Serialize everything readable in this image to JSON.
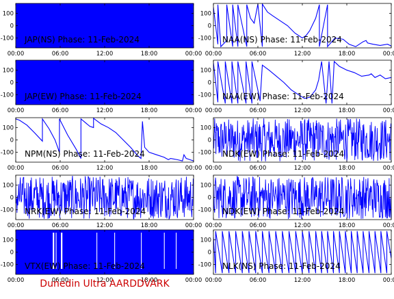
{
  "colors": {
    "trace": "#0000ff",
    "axis": "#000000",
    "footer": "#cc0000",
    "background": "#ffffff"
  },
  "footer": {
    "text": "Dunedin Ultra AARDDVARK"
  },
  "chart_data": [
    {
      "type": "line",
      "title": "JAP(NS) Phase: 11-Feb-2024",
      "xlim": [
        0,
        24
      ],
      "ylim": [
        -180,
        180
      ],
      "x_ticks": [
        "00:00",
        "06:00",
        "12:00",
        "18:00",
        "00:00"
      ],
      "y_ticks": [
        100,
        0,
        -100
      ],
      "fill": "solid",
      "series": [
        {
          "x": [],
          "y": []
        }
      ]
    },
    {
      "type": "line",
      "title": "NAA(NS) Phase: 11-Feb-2024",
      "xlim": [
        0,
        24
      ],
      "ylim": [
        -180,
        180
      ],
      "x_ticks": [
        "00:00",
        "06:00",
        "12:00",
        "18:00",
        "00:00"
      ],
      "y_ticks": [
        100,
        0,
        -100
      ],
      "series": [
        {
          "x": [
            0.0,
            0.6,
            0.6,
            1.0,
            1.8,
            1.8,
            2.6,
            2.6,
            3.3,
            3.3,
            4.5,
            4.5,
            5.0,
            5.5,
            6.0,
            6.6,
            6.6,
            7.3,
            8.0,
            9.0,
            10.0,
            11.0,
            12.0,
            12.5,
            13.0,
            13.8,
            14.3,
            14.3,
            15.4,
            15.4,
            16.4,
            17.5,
            18.3,
            19.2,
            20.2,
            20.6,
            20.8,
            21.5,
            22.5,
            23.5,
            24.0
          ],
          "y": [
            150,
            -150,
            170,
            -170,
            -120,
            170,
            -170,
            170,
            -170,
            170,
            -170,
            170,
            60,
            20,
            175,
            -170,
            175,
            110,
            80,
            40,
            0,
            -60,
            -100,
            -80,
            -40,
            60,
            170,
            -170,
            170,
            -170,
            -100,
            -110,
            -150,
            -170,
            -130,
            -120,
            -140,
            -150,
            -160,
            -150,
            -165
          ]
        }
      ]
    },
    {
      "type": "line",
      "title": "JAP(EW) Phase: 11-Feb-2024",
      "xlim": [
        0,
        24
      ],
      "ylim": [
        -180,
        180
      ],
      "x_ticks": [
        "00:00",
        "06:00",
        "12:00",
        "18:00",
        "00:00"
      ],
      "y_ticks": [
        100,
        0,
        -100
      ],
      "fill": "solid",
      "series": [
        {
          "x": [],
          "y": []
        }
      ]
    },
    {
      "type": "line",
      "title": "NAA(EW) Phase: 11-Feb-2024",
      "xlim": [
        0,
        24
      ],
      "ylim": [
        -180,
        180
      ],
      "x_ticks": [
        "00:00",
        "06:00",
        "12:00",
        "18:00",
        "00:00"
      ],
      "y_ticks": [
        100,
        0,
        -100
      ],
      "series": [
        {
          "x": [
            0.0,
            0.6,
            0.6,
            1.6,
            1.6,
            2.5,
            2.5,
            3.3,
            3.3,
            4.4,
            4.4,
            5.2,
            5.2,
            6.3,
            6.6,
            7.5,
            8.5,
            9.5,
            10.5,
            11.5,
            12.3,
            13.0,
            13.8,
            14.2,
            14.6,
            15.2,
            15.6,
            16.0,
            16.3,
            17.0,
            18.0,
            19.0,
            20.0,
            21.0,
            21.3,
            21.8,
            22.5,
            23.2,
            24.0
          ],
          "y": [
            160,
            -160,
            170,
            -170,
            170,
            -170,
            170,
            -170,
            170,
            -170,
            170,
            -170,
            170,
            -150,
            140,
            100,
            50,
            0,
            -60,
            -100,
            -130,
            -120,
            -60,
            20,
            170,
            -170,
            170,
            -170,
            170,
            130,
            100,
            80,
            50,
            60,
            70,
            40,
            60,
            30,
            40
          ]
        }
      ]
    },
    {
      "type": "line",
      "title": "NPM(NS) Phase: 11-Feb-2024",
      "xlim": [
        0,
        24
      ],
      "ylim": [
        -180,
        180
      ],
      "x_ticks": [
        "00:00",
        "06:00",
        "12:00",
        "18:00",
        "00:00"
      ],
      "y_ticks": [
        100,
        0,
        -100
      ],
      "series": [
        {
          "x": [
            0.0,
            0.5,
            1.5,
            2.5,
            3.6,
            3.6,
            4.5,
            5.3,
            5.9,
            5.9,
            7.0,
            8.2,
            8.8,
            8.8,
            10.0,
            10.5,
            10.5,
            11.5,
            12.5,
            13.5,
            14.5,
            15.5,
            16.5,
            16.9,
            17.1,
            17.4,
            18.0,
            19.0,
            20.0,
            20.6,
            20.9,
            21.8,
            22.5,
            22.7,
            23.0,
            23.5,
            24.0
          ],
          "y": [
            170,
            160,
            120,
            60,
            -10,
            170,
            90,
            0,
            -100,
            170,
            40,
            -80,
            -150,
            170,
            110,
            100,
            175,
            130,
            100,
            60,
            0,
            -60,
            -130,
            -150,
            150,
            -60,
            -100,
            -120,
            -140,
            -160,
            -150,
            -160,
            -170,
            -120,
            -150,
            -160,
            -170
          ]
        }
      ]
    },
    {
      "type": "line",
      "title": "NDK(EW) Phase: 11-Feb-2024",
      "xlim": [
        0,
        24
      ],
      "ylim": [
        -180,
        180
      ],
      "x_ticks": [
        "00:00",
        "06:00",
        "12:00",
        "18:00",
        "00:00"
      ],
      "y_ticks": [
        100,
        0,
        -100
      ],
      "noise": "dense",
      "series": [
        {
          "x": [],
          "y": []
        }
      ]
    },
    {
      "type": "line",
      "title": "NRK(EW) Phase: 11-Feb-2024",
      "xlim": [
        0,
        24
      ],
      "ylim": [
        -180,
        180
      ],
      "x_ticks": [
        "00:00",
        "06:00",
        "12:00",
        "18:00",
        "00:00"
      ],
      "y_ticks": [
        100,
        0,
        -100
      ],
      "noise": "dense",
      "series": [
        {
          "x": [],
          "y": []
        }
      ]
    },
    {
      "type": "line",
      "title": "NDK(EW) Phase: 11-Feb-2024",
      "xlim": [
        0,
        24
      ],
      "ylim": [
        -180,
        180
      ],
      "x_ticks": [
        "00:00",
        "06:00",
        "12:00",
        "18:00",
        "00:00"
      ],
      "y_ticks": [
        100,
        0,
        -100
      ],
      "noise": "dense",
      "series": [
        {
          "x": [],
          "y": []
        }
      ]
    },
    {
      "type": "line",
      "title": "VTX(EW) Phase: 11-Feb-2024",
      "xlim": [
        0,
        24
      ],
      "ylim": [
        -180,
        180
      ],
      "x_ticks": [
        "00:00",
        "06:00",
        "12:00",
        "18:00",
        "00:00"
      ],
      "y_ticks": [
        100,
        0,
        -100
      ],
      "fill": "mostly-solid",
      "series": [
        {
          "x": [],
          "y": []
        }
      ]
    },
    {
      "type": "line",
      "title": "NLK(NS) Phase: 11-Feb-2024",
      "xlim": [
        0,
        24
      ],
      "ylim": [
        -180,
        180
      ],
      "x_ticks": [
        "00:00",
        "06:00",
        "12:00",
        "18:00",
        "00:00"
      ],
      "y_ticks": [
        100,
        0,
        -100
      ],
      "series": [
        {
          "x": [
            0.0,
            0.3,
            0.3,
            1.2,
            1.2,
            2.1,
            2.1,
            3.0,
            3.0,
            3.9,
            3.9,
            4.8,
            4.8,
            5.7,
            5.7,
            6.6,
            6.6,
            7.5,
            7.5,
            8.4,
            8.4,
            9.3,
            9.3,
            10.2,
            10.2,
            11.1,
            11.1,
            12.0,
            12.0,
            12.9,
            12.9,
            13.8,
            13.8,
            14.6,
            14.6,
            15.4,
            15.4,
            16.2,
            16.2,
            17.0,
            17.0,
            17.8,
            17.8,
            18.6,
            18.6,
            19.4,
            19.4,
            20.2,
            20.2,
            21.0,
            21.0,
            21.8,
            21.8,
            22.6,
            22.6,
            23.4,
            23.4,
            24.0
          ],
          "y": [
            120,
            -170,
            170,
            -170,
            170,
            -170,
            170,
            -170,
            170,
            -170,
            170,
            -170,
            170,
            -170,
            170,
            -170,
            170,
            -170,
            170,
            -170,
            170,
            -170,
            170,
            -170,
            170,
            -170,
            170,
            -170,
            170,
            -170,
            170,
            -170,
            170,
            -170,
            170,
            -170,
            170,
            -170,
            170,
            -170,
            170,
            -170,
            170,
            -170,
            170,
            -170,
            170,
            -170,
            170,
            -170,
            170,
            -170,
            170,
            -170,
            170,
            -170,
            170,
            -50
          ]
        }
      ]
    }
  ]
}
